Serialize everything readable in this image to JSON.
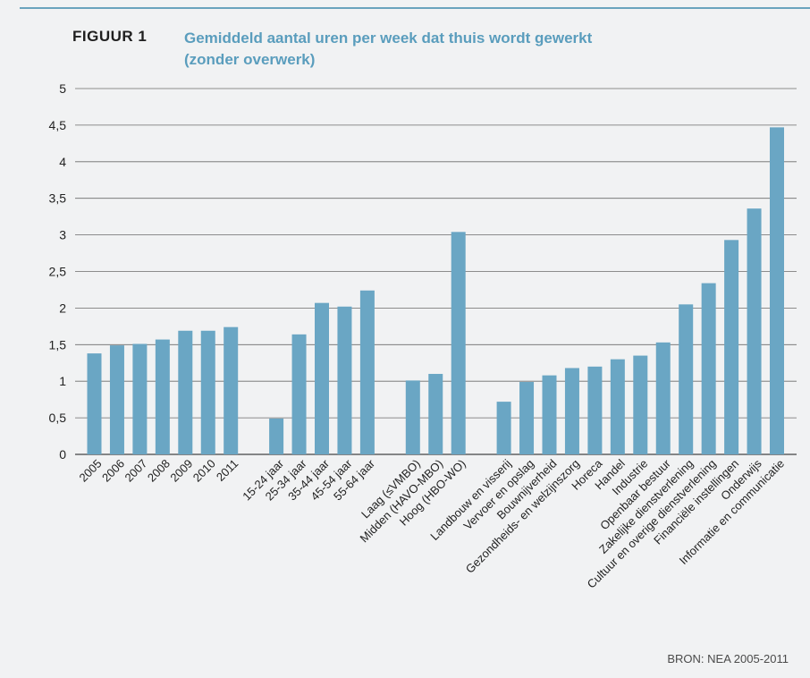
{
  "header": {
    "figure_label": "FIGUUR 1",
    "title_line1": "Gemiddeld aantal uren per week dat thuis wordt gewerkt",
    "title_line2": "(zonder overwerk)"
  },
  "footer": {
    "source": "BRON: NEA 2005-2011"
  },
  "colors": {
    "bar": "#6aa6c4",
    "title": "#5a9dbd",
    "grid": "#555555",
    "background": "#f1f2f3"
  },
  "chart_data": {
    "type": "bar",
    "title": "Gemiddeld aantal uren per week dat thuis wordt gewerkt (zonder overwerk)",
    "xlabel": "",
    "ylabel": "",
    "ylim": [
      0,
      5
    ],
    "yticks": [
      "0",
      "0,5",
      "1",
      "1,5",
      "2",
      "2,5",
      "3",
      "3,5",
      "4",
      "4,5",
      "5"
    ],
    "grid": true,
    "groups": [
      {
        "categories": [
          "2005",
          "2006",
          "2007",
          "2008",
          "2009",
          "2010",
          "2011"
        ],
        "values": [
          1.38,
          1.49,
          1.51,
          1.57,
          1.69,
          1.69,
          1.74
        ]
      },
      {
        "categories": [
          "15-24 jaar",
          "25-34 jaar",
          "35-44 jaar",
          "45-54 jaar",
          "55-64 jaar"
        ],
        "values": [
          0.49,
          1.64,
          2.07,
          2.02,
          2.24
        ]
      },
      {
        "categories": [
          "Laag (≤VMBO)",
          "Midden (HAVO-MBO)",
          "Hoog (HBO-WO)"
        ],
        "values": [
          1.01,
          1.1,
          3.04
        ]
      },
      {
        "categories": [
          "Landbouw en visserij",
          "Vervoer en opslag",
          "Bouwnijverheid",
          "Gezondheids- en welzijnszorg",
          "Horeca",
          "Handel",
          "Industrie",
          "Openbaar bestuur",
          "Zakelijke dienstverlening",
          "Cultuur en overige dienstverlening",
          "Financiële instellingen",
          "Onderwijs",
          "Informatie en communicatie"
        ],
        "values": [
          0.72,
          0.99,
          1.08,
          1.18,
          1.2,
          1.3,
          1.35,
          1.53,
          2.05,
          2.34,
          2.93,
          3.36,
          4.47
        ]
      }
    ]
  }
}
